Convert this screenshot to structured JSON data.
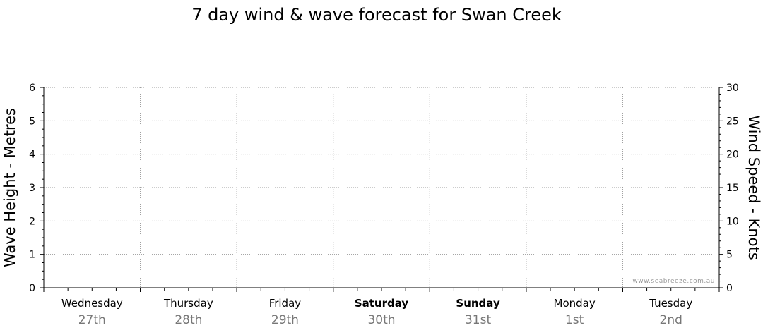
{
  "chart_data": {
    "type": "line",
    "title": "7 day wind & wave forecast for Swan Creek",
    "y_left": {
      "label": "Wave Height - Metres",
      "min": 0,
      "max": 6,
      "ticks": [
        0,
        1,
        2,
        3,
        4,
        5,
        6
      ]
    },
    "y_right": {
      "label": "Wind Speed - Knots",
      "min": 0,
      "max": 30,
      "ticks": [
        0,
        5,
        10,
        15,
        20,
        25,
        30
      ]
    },
    "days": [
      {
        "name": "Wednesday",
        "date": "27th",
        "bold": false
      },
      {
        "name": "Thursday",
        "date": "28th",
        "bold": false
      },
      {
        "name": "Friday",
        "date": "29th",
        "bold": false
      },
      {
        "name": "Saturday",
        "date": "30th",
        "bold": true
      },
      {
        "name": "Sunday",
        "date": "31st",
        "bold": true
      },
      {
        "name": "Monday",
        "date": "1st",
        "bold": false
      },
      {
        "name": "Tuesday",
        "date": "2nd",
        "bold": false
      }
    ],
    "series": [],
    "grid": true,
    "watermark": "www.seabreeze.com.au"
  }
}
